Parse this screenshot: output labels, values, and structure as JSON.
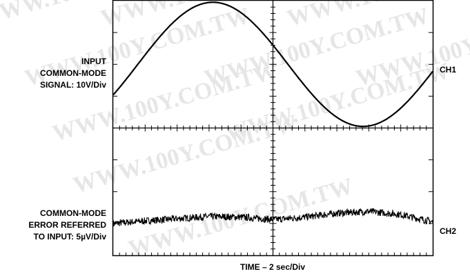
{
  "watermark": "WWW.100Y.COM.TW",
  "chart_data": {
    "type": "line",
    "title": "",
    "xlabel": "TIME – 2 sec/Div",
    "x_divisions": 10,
    "y_divisions": 8,
    "grid": false,
    "channels": [
      {
        "name": "CH1",
        "label_lines": [
          "INPUT",
          "COMMON-MODE",
          "SIGNAL: 10V/Div"
        ],
        "scale": "10V/Div",
        "waveform": "sine",
        "ground_division": 6,
        "amplitude_div": 1.95,
        "period_div": 9.4,
        "x_at_zero_crossing_div": 5.47,
        "x": [
          0,
          1,
          2,
          3,
          4,
          5,
          6,
          7,
          8,
          9,
          10
        ],
        "y_div": [
          -0.2,
          0.8,
          1.6,
          1.9,
          1.7,
          0.9,
          -0.6,
          -1.5,
          -1.9,
          -1.6,
          -0.9
        ]
      },
      {
        "name": "CH2",
        "label_lines": [
          "COMMON-MODE",
          "ERROR REFERRED",
          "TO INPUT: 5µV/Div"
        ],
        "scale": "5µV/Div",
        "waveform": "noisy",
        "ground_division": 1,
        "x": [
          0,
          1,
          2,
          3,
          4,
          5,
          6,
          7,
          8,
          9,
          10
        ],
        "y_div": [
          0,
          0.08,
          0.15,
          0.22,
          0.2,
          0.12,
          0.2,
          0.32,
          0.38,
          0.28,
          0.05
        ]
      }
    ]
  }
}
